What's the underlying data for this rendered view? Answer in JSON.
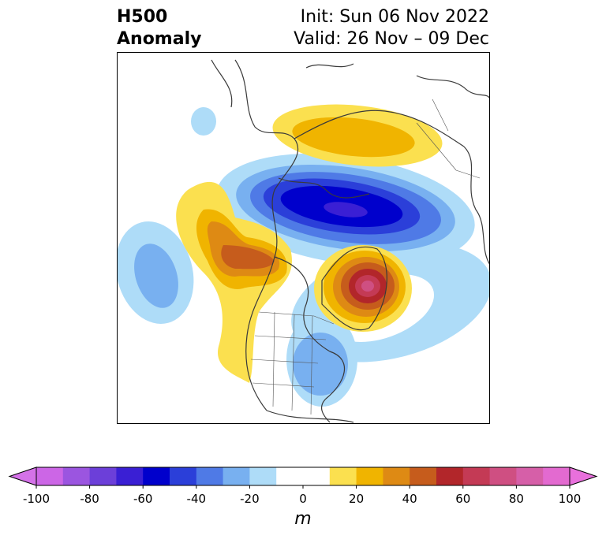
{
  "title": {
    "left_line1": "H500",
    "left_line2": "Anomaly",
    "right_line1": "Init: Sun 06 Nov 2022",
    "right_line2": "Valid: 26 Nov – 09 Dec"
  },
  "map": {
    "projection": "polar-stereographic",
    "region": "North America / Arctic",
    "features": [
      {
        "name": "positive-anomaly-north-siberia",
        "sign": "positive",
        "peak_m": 20
      },
      {
        "name": "negative-anomaly-arctic",
        "sign": "negative",
        "peak_m": -60
      },
      {
        "name": "positive-anomaly-west-canada",
        "sign": "positive",
        "peak_m": 40
      },
      {
        "name": "positive-anomaly-greenland",
        "sign": "positive",
        "peak_m": 80
      },
      {
        "name": "negative-anomaly-north-pacific",
        "sign": "negative",
        "peak_m": -30
      },
      {
        "name": "negative-anomaly-eastern-us",
        "sign": "negative",
        "peak_m": -30
      },
      {
        "name": "negative-anomaly-north-atlantic",
        "sign": "negative",
        "peak_m": -10
      },
      {
        "name": "negative-anomaly-alaska-small",
        "sign": "negative",
        "peak_m": -20
      }
    ]
  },
  "colorbar": {
    "unit": "m",
    "ticks": [
      "-100",
      "-80",
      "-60",
      "-40",
      "-20",
      "0",
      "20",
      "40",
      "60",
      "80",
      "100"
    ],
    "colors": [
      "#cc66e6",
      "#9b55e0",
      "#6c3fd9",
      "#3a1fd4",
      "#0000cc",
      "#2b3fd9",
      "#4f7ae6",
      "#78b0f0",
      "#aedcf8",
      "#ffffff",
      "#ffffff",
      "#fbe04f",
      "#f0b400",
      "#de8a14",
      "#c65c1c",
      "#b2262a",
      "#c43a55",
      "#cf4f82",
      "#d65fa8",
      "#e36ad0"
    ],
    "extend": "both"
  }
}
